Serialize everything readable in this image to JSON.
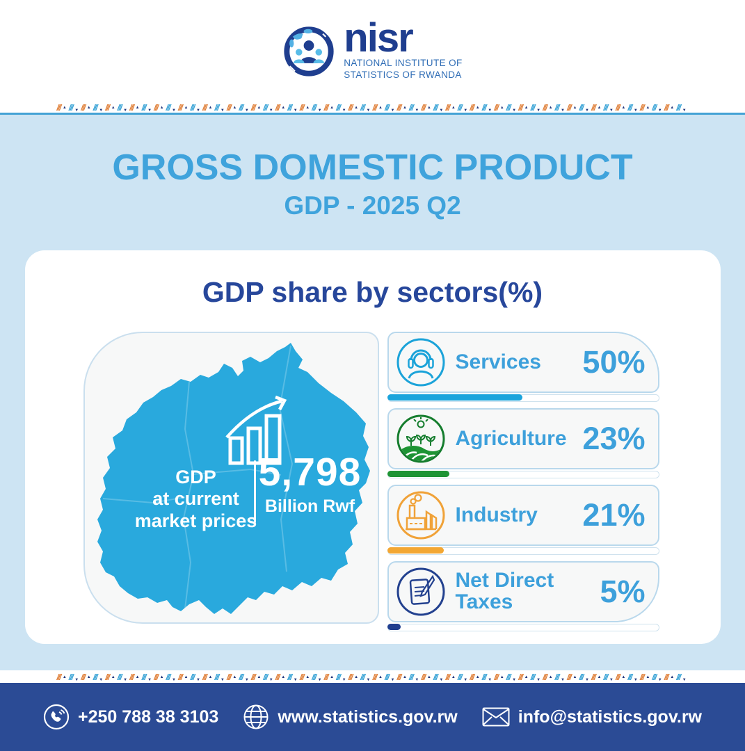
{
  "logo": {
    "brand": "nisr",
    "org_line1": "NATIONAL INSTITUTE OF",
    "org_line2": "STATISTICS OF RWANDA"
  },
  "header": {
    "title": "GROSS DOMESTIC PRODUCT",
    "subtitle": "GDP - 2025 Q2"
  },
  "card": {
    "heading": "GDP share by sectors(%)",
    "map_panel": {
      "label_line1": "GDP",
      "label_line2": "at current",
      "label_line3": "market prices",
      "value": "5,798",
      "unit": "Billion Rwf",
      "map_color": "#29a9dd"
    },
    "sectors": [
      {
        "name": "Services",
        "value": "50%",
        "pct": 50,
        "color": "#1ba4dc",
        "icon": "headset-person-icon"
      },
      {
        "name": "Agriculture",
        "value": "23%",
        "pct": 23,
        "color": "#1e9434",
        "icon": "farm-field-icon"
      },
      {
        "name": "Industry",
        "value": "21%",
        "pct": 21,
        "color": "#f3a733",
        "icon": "factory-icon"
      },
      {
        "name": "Net Direct Taxes",
        "value": "5%",
        "pct": 5,
        "color": "#1f3e8f",
        "icon": "document-pen-icon"
      }
    ]
  },
  "footer": {
    "phone": "+250 788 38 3103",
    "website": "www.statistics.gov.rw",
    "email": "info@statistics.gov.rw",
    "bg_color": "#2b4b95"
  },
  "colors": {
    "hero_background": "#cde4f3",
    "title_blue": "#3fa3dc",
    "navy": "#27479b"
  },
  "chart_data": {
    "type": "bar",
    "title": "GDP share by sectors(%)",
    "categories": [
      "Services",
      "Agriculture",
      "Industry",
      "Net Direct Taxes"
    ],
    "values": [
      50,
      23,
      21,
      5
    ],
    "unit": "%",
    "series_colors": [
      "#1ba4dc",
      "#1e9434",
      "#f3a733",
      "#1f3e8f"
    ],
    "xlim": [
      0,
      100
    ],
    "annotations": [
      "GDP at current market prices: 5,798 Billion Rwf",
      "Period: GDP - 2025 Q2"
    ]
  }
}
